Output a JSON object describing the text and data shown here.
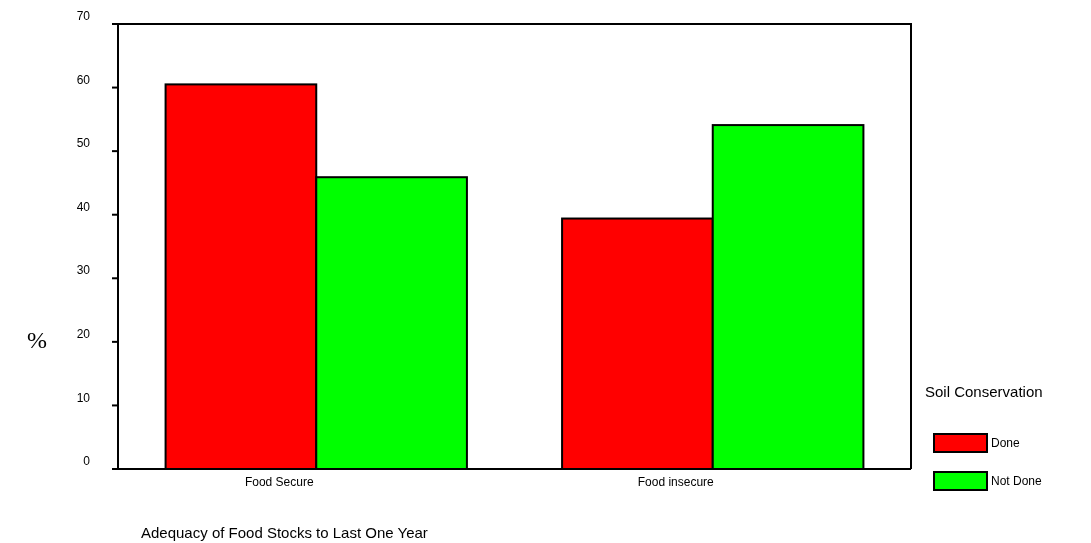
{
  "chart_data": {
    "type": "bar",
    "xlabel": "Adequacy of Food Stocks to Last One Year",
    "ylabel": "%",
    "legend_title": "Soil Conservation",
    "categories": [
      "Food Secure",
      "Food insecure"
    ],
    "series": [
      {
        "name": "Done",
        "color": "#ff0000",
        "values": [
          60.5,
          39.4
        ]
      },
      {
        "name": "Not Done",
        "color": "#00ff00",
        "values": [
          45.9,
          54.1
        ]
      }
    ],
    "ylim": [
      0,
      70
    ],
    "yticks": [
      0,
      10,
      20,
      30,
      40,
      50,
      60,
      70
    ],
    "grid": false,
    "legend": "right"
  }
}
